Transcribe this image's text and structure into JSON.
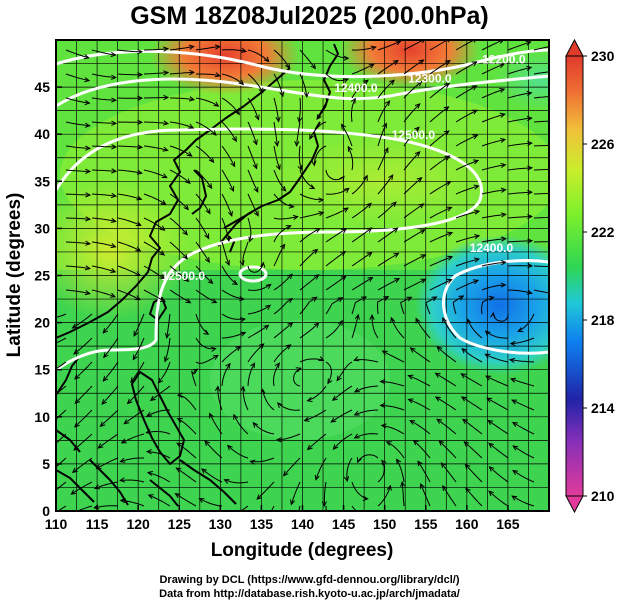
{
  "title": "GSM 18Z08Jul2025 (200.0hPa)",
  "credits": {
    "line1": "Drawing by DCL (https://www.gfd-dennou.org/library/dcl/)",
    "line2": "Data from http://database.rish.kyoto-u.ac.jp/arch/jmadata/"
  },
  "map": {
    "xlabel": "Longitude (degrees)",
    "ylabel": "Latitude  (degrees)",
    "xlim": [
      110,
      170
    ],
    "ylim": [
      0,
      50
    ],
    "x_ticks": [
      110,
      115,
      120,
      125,
      130,
      135,
      140,
      145,
      150,
      155,
      160,
      165
    ],
    "y_ticks": [
      0,
      5,
      10,
      15,
      20,
      25,
      30,
      35,
      40,
      45
    ],
    "grid": true,
    "contour_labels": [
      {
        "text": "12300.0",
        "lon": 155.5,
        "lat": 45.5
      },
      {
        "text": "12400.0",
        "lon": 146.5,
        "lat": 44.5
      },
      {
        "text": "12500.0",
        "lon": 153.5,
        "lat": 39.5
      },
      {
        "text": "12200.0",
        "lon": 164.5,
        "lat": 47.5
      },
      {
        "text": "12500.0",
        "lon": 125.5,
        "lat": 24.5
      },
      {
        "text": "12400.0",
        "lon": 163.0,
        "lat": 27.5
      }
    ],
    "colorbar": {
      "values": [
        230,
        226,
        222,
        218,
        214,
        210
      ],
      "range": [
        210,
        230
      ],
      "colors": [
        "#e23a9a",
        "#2024a8",
        "#0d7ff0",
        "#21c9d7",
        "#2ed653",
        "#7cf02b",
        "#c9ee2c",
        "#f1c23a",
        "#f06e34",
        "#e03a2b"
      ]
    }
  }
}
